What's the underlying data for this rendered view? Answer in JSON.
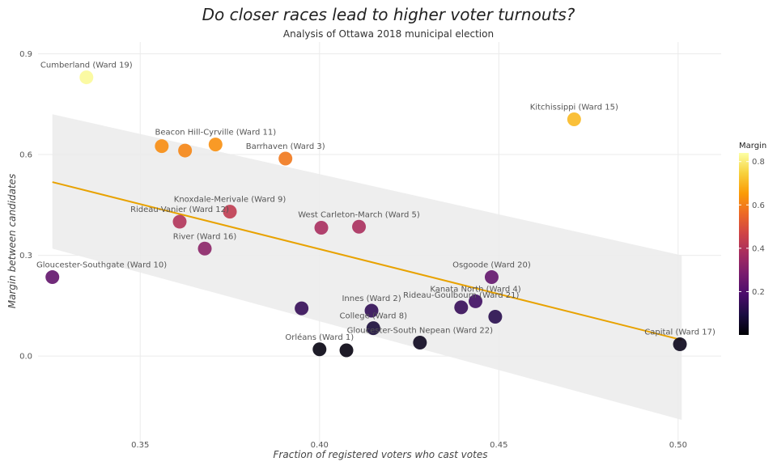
{
  "chart_data": {
    "type": "scatter",
    "title": "Do closer races lead to higher voter turnouts?",
    "subtitle": "Analysis of Ottawa 2018 municipal election",
    "xlabel": "Fraction of registered voters who cast votes",
    "ylabel": "Margin between candidates",
    "xlim": [
      0.3215,
      0.512
    ],
    "ylim": [
      -0.26,
      0.935
    ],
    "x_ticks": [
      0.35,
      0.4,
      0.45,
      0.5
    ],
    "x_tick_labels": [
      "0.35",
      "0.40",
      "0.45",
      "0.50"
    ],
    "y_ticks": [
      0.0,
      0.3,
      0.6,
      0.9
    ],
    "y_tick_labels": [
      "0.0",
      "0.3",
      "0.6",
      "0.9"
    ],
    "grid": true,
    "legend": {
      "title": "Margin",
      "placement": "right",
      "ticks": [
        0.2,
        0.4,
        0.6,
        0.8
      ],
      "tick_labels": [
        "0.2",
        "0.4",
        "0.6",
        "0.8"
      ],
      "range": [
        0.0,
        0.84
      ]
    },
    "colors": {
      "trend_line": "#e8a200",
      "confidence_band": "#ebebeb",
      "gridline": "#ebebeb",
      "colormap": [
        "#000004",
        "#1b0c41",
        "#4a0c6b",
        "#781c6d",
        "#a52c60",
        "#cf4446",
        "#ed6925",
        "#fb9b06",
        "#f7d13d",
        "#fcffa4"
      ]
    },
    "trend": {
      "x": [
        0.3255,
        0.501
      ],
      "y": [
        0.518,
        0.048
      ],
      "band_upper": [
        0.72,
        0.3
      ],
      "band_lower": [
        0.32,
        -0.19
      ]
    },
    "points": [
      {
        "x": 0.335,
        "y": 0.83,
        "label": "Cumberland (Ward 19)"
      },
      {
        "x": 0.471,
        "y": 0.705,
        "label": "Kitchissippi (Ward 15)"
      },
      {
        "x": 0.356,
        "y": 0.625,
        "label": ""
      },
      {
        "x": 0.3625,
        "y": 0.612,
        "label": ""
      },
      {
        "x": 0.371,
        "y": 0.63,
        "label": "Beacon Hill-Cyrville (Ward 11)"
      },
      {
        "x": 0.3905,
        "y": 0.588,
        "label": "Barrhaven (Ward 3)"
      },
      {
        "x": 0.375,
        "y": 0.43,
        "label": "Knoxdale-Merivale (Ward 9)"
      },
      {
        "x": 0.361,
        "y": 0.4,
        "label": "Rideau-Vanier (Ward 12)"
      },
      {
        "x": 0.4005,
        "y": 0.382,
        "label": ""
      },
      {
        "x": 0.411,
        "y": 0.385,
        "label": "West Carleton-March (Ward 5)"
      },
      {
        "x": 0.368,
        "y": 0.32,
        "label": "River (Ward 16)"
      },
      {
        "x": 0.3255,
        "y": 0.235,
        "label": "Gloucester-Southgate (Ward 10)"
      },
      {
        "x": 0.448,
        "y": 0.235,
        "label": "Osgoode (Ward 20)"
      },
      {
        "x": 0.4435,
        "y": 0.163,
        "label": "Kanata North (Ward 4)"
      },
      {
        "x": 0.4395,
        "y": 0.145,
        "label": "Rideau-Goulbourn (Ward 21)"
      },
      {
        "x": 0.395,
        "y": 0.142,
        "label": ""
      },
      {
        "x": 0.4145,
        "y": 0.135,
        "label": "Innes (Ward 2)"
      },
      {
        "x": 0.449,
        "y": 0.117,
        "label": ""
      },
      {
        "x": 0.415,
        "y": 0.083,
        "label": "College (Ward 8)"
      },
      {
        "x": 0.428,
        "y": 0.04,
        "label": "Gloucester-South Nepean (Ward 22)"
      },
      {
        "x": 0.4,
        "y": 0.02,
        "label": "Orléans (Ward 1)"
      },
      {
        "x": 0.4075,
        "y": 0.017,
        "label": ""
      },
      {
        "x": 0.5005,
        "y": 0.035,
        "label": "Capital (Ward 17)"
      }
    ]
  }
}
